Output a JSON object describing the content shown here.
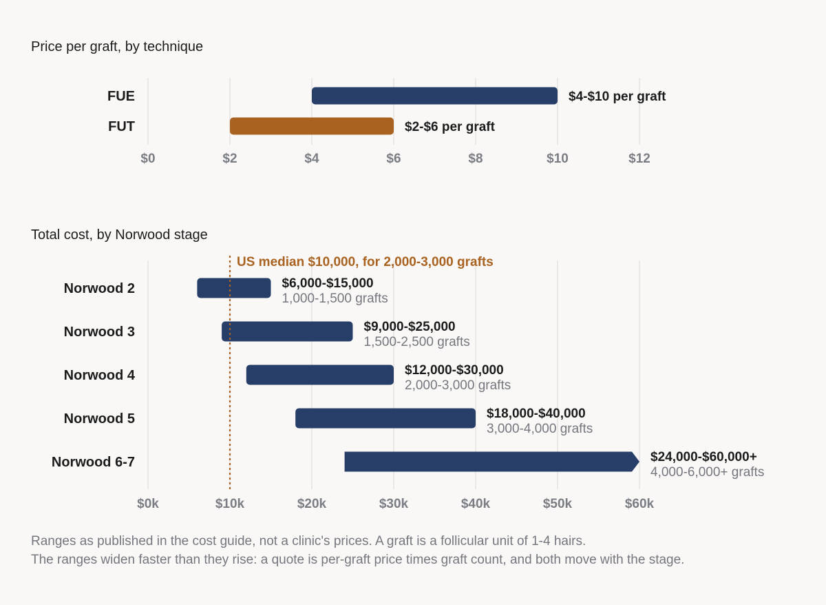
{
  "chart_data": [
    {
      "type": "bar",
      "title": "Price per graft, by technique",
      "categories": [
        "FUE",
        "FUT"
      ],
      "ranges": [
        [
          4,
          10
        ],
        [
          2,
          6
        ]
      ],
      "labels": [
        "$4-$10 per graft",
        "$2-$6 per graft"
      ],
      "colors": [
        "#273f68",
        "#a9621f"
      ],
      "xlim": [
        0,
        12
      ],
      "xticks": [
        0,
        2,
        4,
        6,
        8,
        10,
        12
      ],
      "xtick_labels": [
        "$0",
        "$2",
        "$4",
        "$6",
        "$8",
        "$10",
        "$12"
      ],
      "grid": true
    },
    {
      "type": "bar",
      "title": "Total cost, by Norwood stage",
      "categories": [
        "Norwood 2",
        "Norwood 3",
        "Norwood 4",
        "Norwood 5",
        "Norwood 6-7"
      ],
      "ranges": [
        [
          6000,
          15000
        ],
        [
          9000,
          25000
        ],
        [
          12000,
          30000
        ],
        [
          18000,
          40000
        ],
        [
          24000,
          60000
        ]
      ],
      "open_ended": [
        false,
        false,
        false,
        false,
        true
      ],
      "labels": [
        "$6,000-$15,000",
        "$9,000-$25,000",
        "$12,000-$30,000",
        "$18,000-$40,000",
        "$24,000-$60,000+"
      ],
      "sublabels": [
        "1,000-1,500 grafts",
        "1,500-2,500 grafts",
        "2,000-3,000 grafts",
        "3,000-4,000 grafts",
        "4,000-6,000+ grafts"
      ],
      "color": "#273f68",
      "xlim": [
        0,
        60000
      ],
      "xticks": [
        0,
        10000,
        20000,
        30000,
        40000,
        50000,
        60000
      ],
      "xtick_labels": [
        "$0k",
        "$10k",
        "$20k",
        "$30k",
        "$40k",
        "$50k",
        "$60k"
      ],
      "grid": true,
      "reference_line": {
        "value": 10000,
        "label": "US median $10,000, for 2,000-3,000 grafts",
        "color": "#a9621f"
      }
    }
  ],
  "notes": [
    "Ranges as published in the cost guide, not a clinic's prices. A graft is a follicular unit of 1-4 hairs.",
    "The ranges widen faster than they rise: a quote is per-graft price times graft count, and both move with the stage."
  ],
  "colors": {
    "background": "#faf8f6",
    "grid": "#e4e2e0",
    "tick": "#7b7d85",
    "muted": "#75767e"
  }
}
